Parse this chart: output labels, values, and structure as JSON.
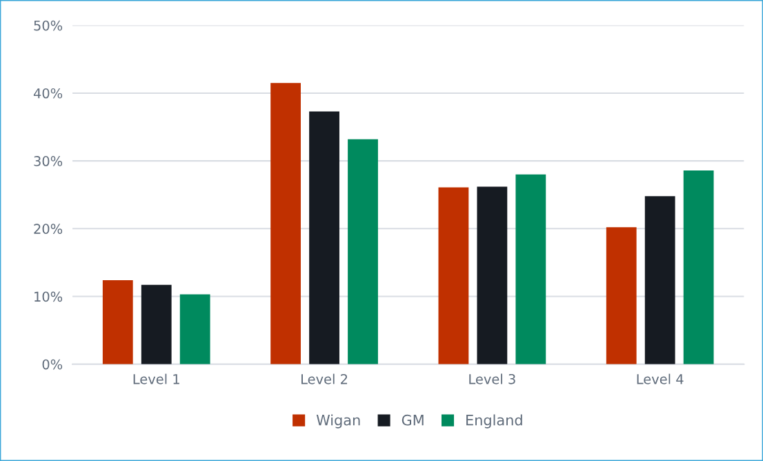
{
  "chart_data": {
    "type": "bar",
    "categories": [
      "Level 1",
      "Level 2",
      "Level 3",
      "Level 4"
    ],
    "series": [
      {
        "name": "Wigan",
        "color": "#c03000",
        "values": [
          12.4,
          41.5,
          26.1,
          20.2
        ]
      },
      {
        "name": "GM",
        "color": "#161b22",
        "values": [
          11.7,
          37.3,
          26.2,
          24.8
        ]
      },
      {
        "name": "England",
        "color": "#008a5e",
        "values": [
          10.3,
          33.2,
          28.0,
          28.6
        ]
      }
    ],
    "ylim": [
      0,
      50
    ],
    "yticks": [
      {
        "value": 0,
        "label": "0%"
      },
      {
        "value": 10,
        "label": "10%"
      },
      {
        "value": 20,
        "label": "20%"
      },
      {
        "value": 30,
        "label": "30%"
      },
      {
        "value": 40,
        "label": "40%"
      },
      {
        "value": 50,
        "label": "50%"
      }
    ],
    "grid": "y",
    "legend": "bottom"
  }
}
